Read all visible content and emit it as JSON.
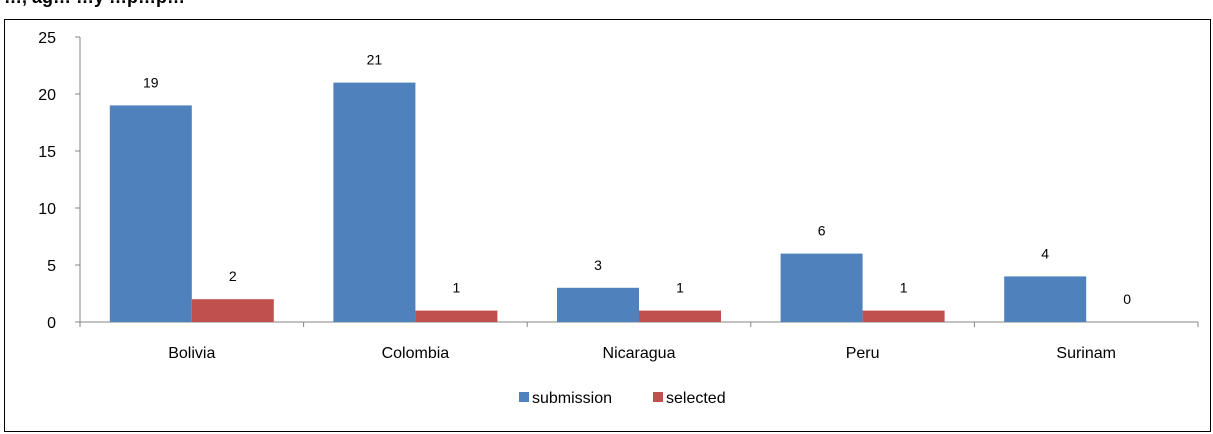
{
  "header_fragment": "…, ag… …y …p…p…",
  "chart_data": {
    "type": "bar",
    "categories": [
      "Bolivia",
      "Colombia",
      "Nicaragua",
      "Peru",
      "Surinam"
    ],
    "series": [
      {
        "name": "submission",
        "values": [
          19,
          21,
          3,
          6,
          4
        ],
        "color": "#4F81BD"
      },
      {
        "name": "selected",
        "values": [
          2,
          1,
          1,
          1,
          0
        ],
        "color": "#C0504D"
      }
    ],
    "ylim": [
      0,
      25
    ],
    "yticks": [
      0,
      5,
      10,
      15,
      20,
      25
    ],
    "grid": false,
    "legend_position": "bottom",
    "data_labels": true,
    "title": "",
    "xlabel": "",
    "ylabel": ""
  }
}
